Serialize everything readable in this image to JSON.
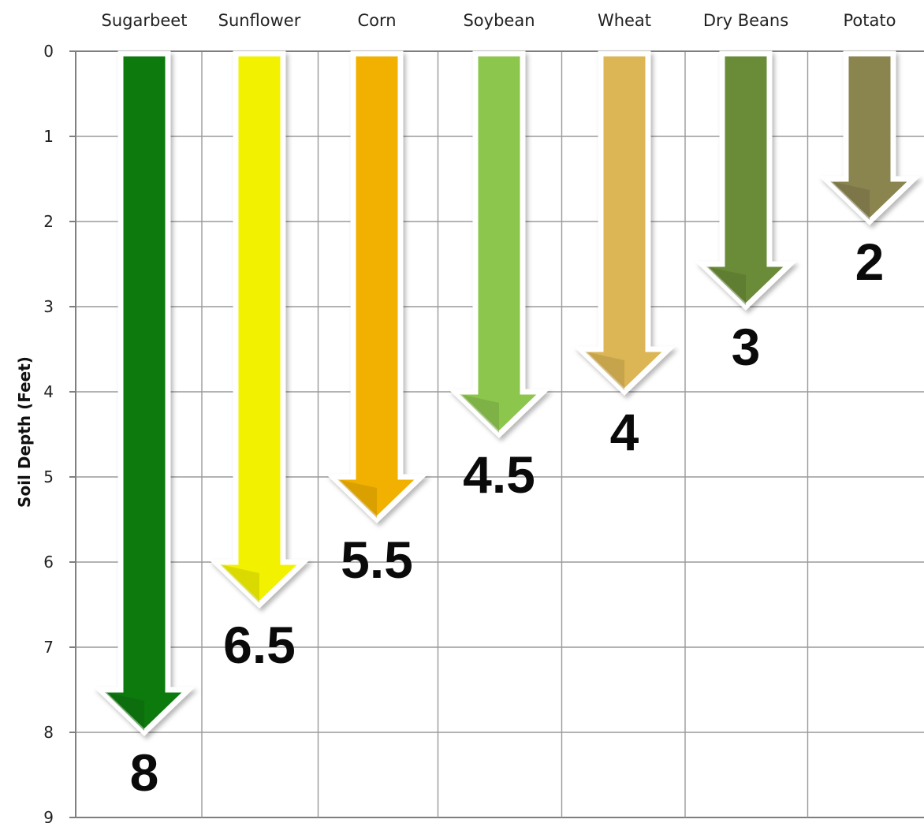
{
  "chart_data": {
    "type": "bar",
    "title": "",
    "xlabel": "",
    "ylabel": "Soil Depth (Feet)",
    "ylim": [
      0,
      9
    ],
    "y_inverted": true,
    "grid": true,
    "y_ticks": [
      "0",
      "1",
      "2",
      "3",
      "4",
      "5",
      "6",
      "7",
      "8",
      "9"
    ],
    "categories": [
      "Sugarbeet",
      "Sunflower",
      "Corn",
      "Soybean",
      "Wheat",
      "Dry Beans",
      "Potato"
    ],
    "values": [
      8,
      6.5,
      5.5,
      4.5,
      4,
      3,
      2
    ],
    "value_labels": [
      "8",
      "6.5",
      "5.5",
      "4.5",
      "4",
      "3",
      "2"
    ],
    "colors": [
      "#0a7a0a",
      "#f2f200",
      "#f2b100",
      "#8cc64e",
      "#dcb655",
      "#6b8c38",
      "#8a8450"
    ]
  }
}
